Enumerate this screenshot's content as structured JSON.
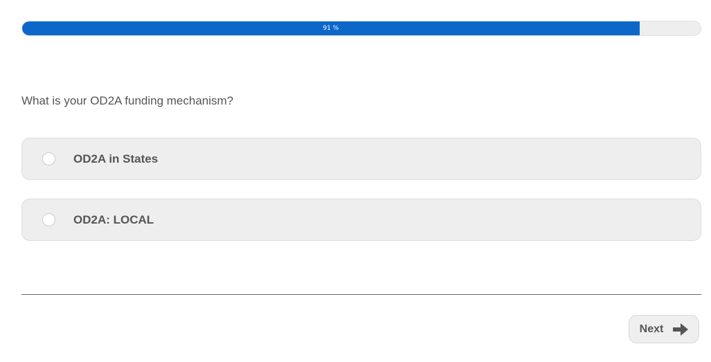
{
  "progress": {
    "percent": 91,
    "label": "91 %",
    "color": "#0d67c9"
  },
  "question": "What is your OD2A funding mechanism?",
  "options": [
    {
      "label": "OD2A in States",
      "selected": false
    },
    {
      "label": "OD2A: LOCAL",
      "selected": false
    }
  ],
  "next": {
    "label": "Next",
    "icon": "arrow-right-icon"
  }
}
